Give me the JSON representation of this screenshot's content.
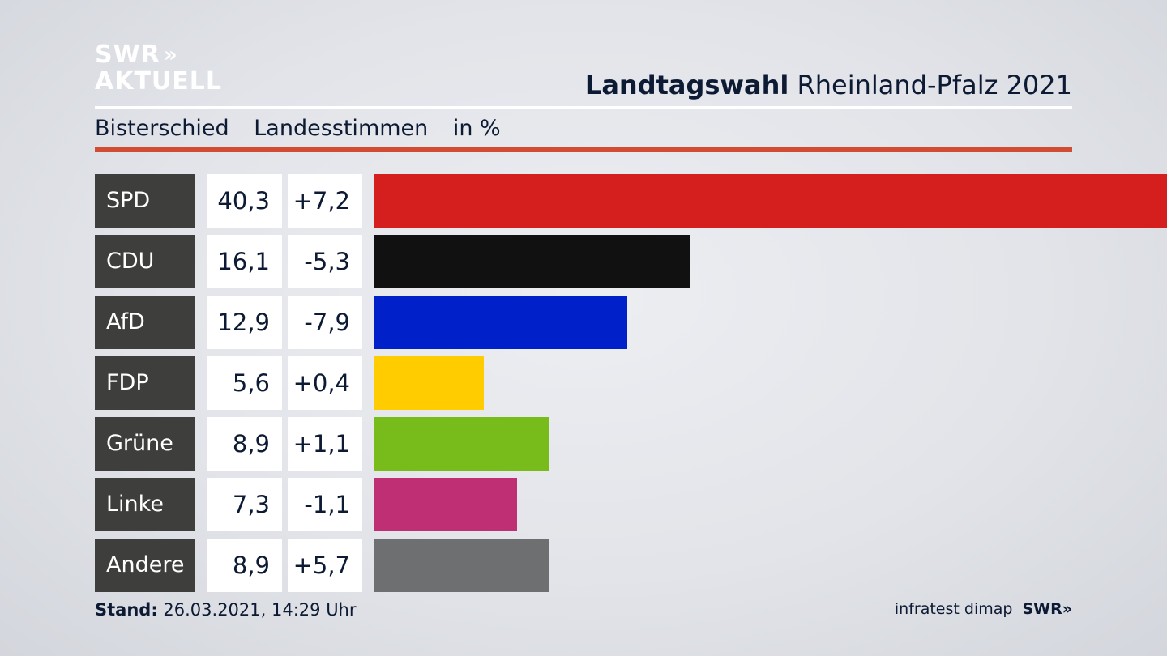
{
  "logo": {
    "line1": "SWR",
    "chevrons": "»",
    "line2": "AKTUELL"
  },
  "header": {
    "title_bold": "Landtagswahl",
    "title_rest": "Rheinland-Pfalz 2021"
  },
  "subtitle": {
    "district": "Bisterschied",
    "vote_type": "Landesstimmen",
    "unit": "in %"
  },
  "footer": {
    "stand_label": "Stand:",
    "stand_value": "26.03.2021, 14:29 Uhr",
    "source": "infratest dimap",
    "brand": "SWR",
    "brand_chevrons": "»"
  },
  "chart_data": {
    "type": "bar",
    "orientation": "horizontal",
    "title": "Landtagswahl Rheinland-Pfalz 2021",
    "subtitle": "Bisterschied Landesstimmen in %",
    "categories": [
      "SPD",
      "CDU",
      "AfD",
      "FDP",
      "Grüne",
      "Linke",
      "Andere"
    ],
    "values": [
      40.3,
      16.1,
      12.9,
      5.6,
      8.9,
      7.3,
      8.9
    ],
    "value_labels": [
      "40,3",
      "16,1",
      "12,9",
      "5,6",
      "8,9",
      "7,3",
      "8,9"
    ],
    "diff_labels": [
      "+7,2",
      "-5,3",
      "-7,9",
      "+0,4",
      "+1,1",
      "-1,1",
      "+5,7"
    ],
    "colors": [
      "#d51f1f",
      "#111111",
      "#0021c9",
      "#ffcc00",
      "#78bc1b",
      "#bf2f73",
      "#6e6f71"
    ],
    "xlim": [
      0,
      40.3
    ]
  }
}
